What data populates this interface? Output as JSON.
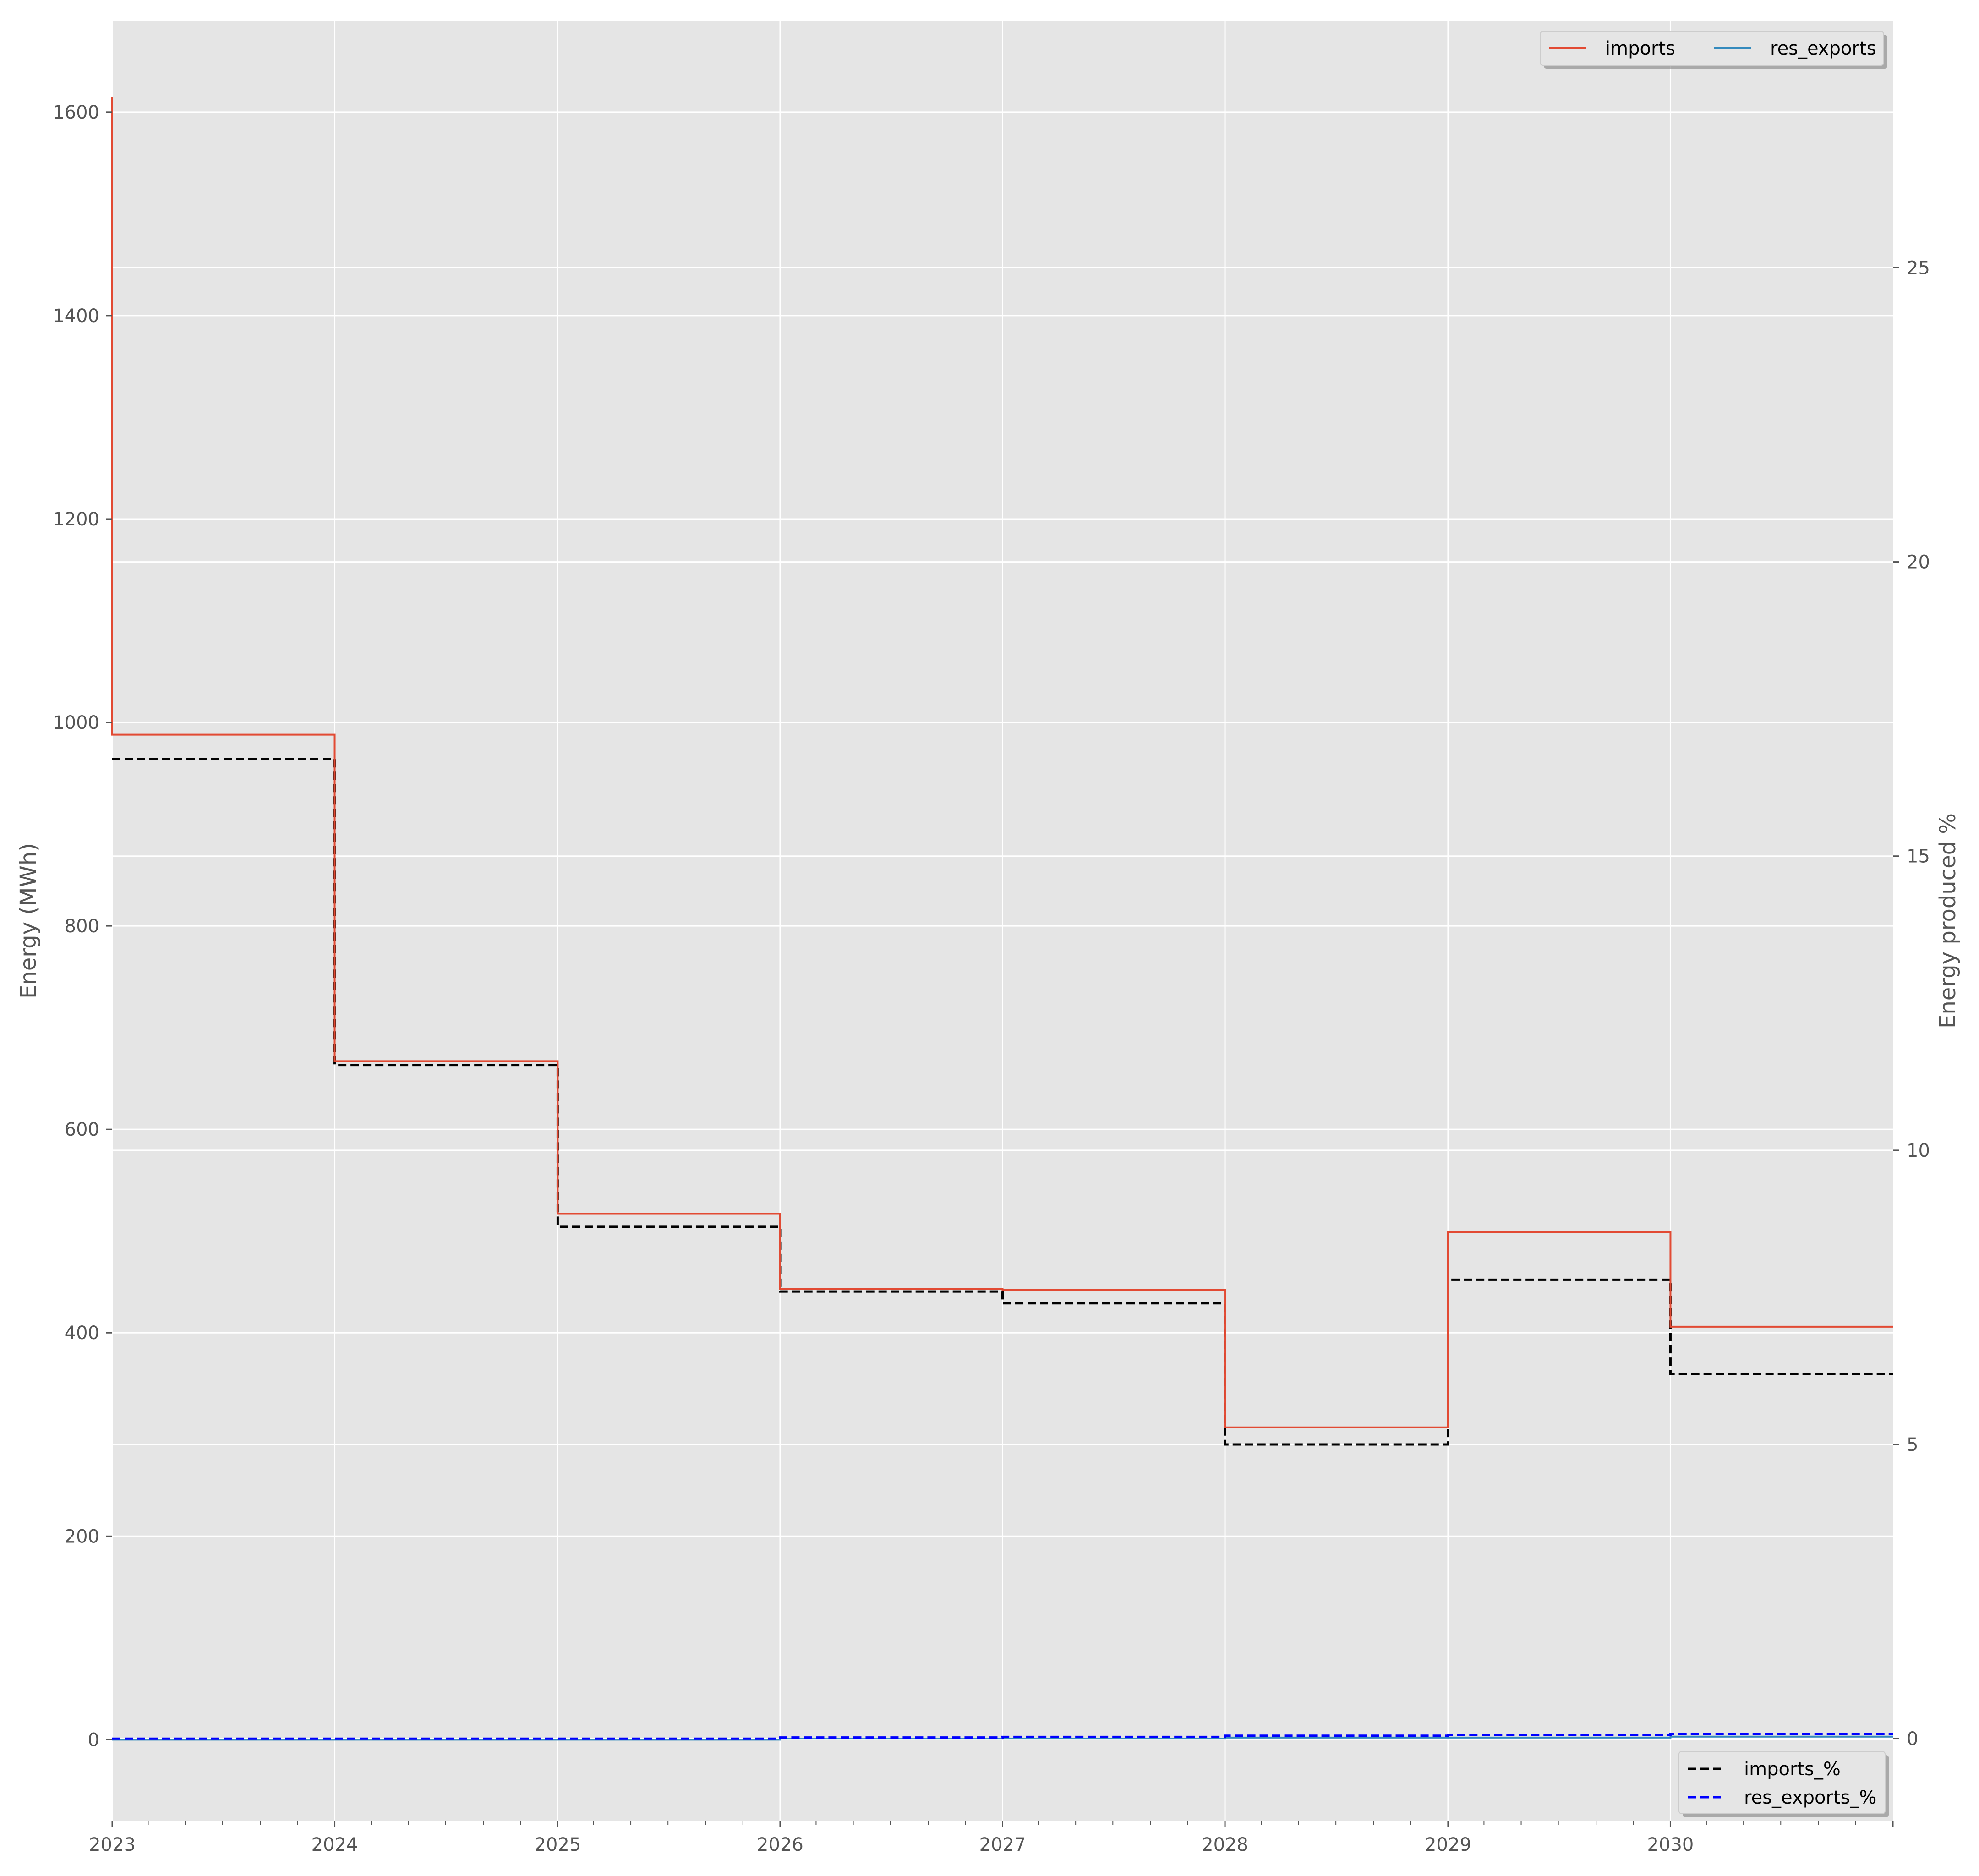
{
  "chart_data": {
    "type": "line",
    "style": "step",
    "x_ticks": [
      "2023",
      "2024",
      "2025",
      "2026",
      "2027",
      "2028",
      "2029",
      "2030"
    ],
    "xlim": [
      "2023-01-01",
      "2031-01-01"
    ],
    "left_axis": {
      "ylabel": "Energy (MWh)",
      "ylim": [
        -80,
        1690
      ],
      "ticks": [
        0,
        200,
        400,
        600,
        800,
        1000,
        1200,
        1400,
        1600
      ],
      "tick_labels": [
        "0",
        "200",
        "400",
        "600",
        "800",
        "1000",
        "1200",
        "1400",
        "1600"
      ]
    },
    "right_axis": {
      "ylabel": "Energy produced %",
      "ylim": [
        -1.4,
        29.2
      ],
      "ticks": [
        0,
        5,
        10,
        15,
        20,
        25
      ],
      "tick_labels": [
        "0",
        "5",
        "10",
        "15",
        "20",
        "25"
      ]
    },
    "series": [
      {
        "name": "imports",
        "axis": "left",
        "color": "#E24A33",
        "linestyle": "solid",
        "initial_spike": 1615,
        "x": [
          "2023",
          "2024",
          "2025",
          "2026",
          "2027",
          "2028",
          "2029",
          "2030"
        ],
        "values": [
          988,
          667,
          517,
          443,
          442,
          307,
          499,
          406
        ]
      },
      {
        "name": "res_exports",
        "axis": "left",
        "color": "#348ABD",
        "linestyle": "solid",
        "x": [
          "2023",
          "2024",
          "2025",
          "2026",
          "2027",
          "2028",
          "2029",
          "2030"
        ],
        "values": [
          0,
          0,
          0,
          1,
          1,
          2,
          2,
          3
        ]
      },
      {
        "name": "imports_%",
        "axis": "right",
        "color": "#000000",
        "linestyle": "dashed",
        "x": [
          "2023",
          "2024",
          "2025",
          "2026",
          "2027",
          "2028",
          "2029",
          "2030"
        ],
        "values": [
          16.65,
          11.45,
          8.7,
          7.6,
          7.4,
          5.0,
          7.8,
          6.2
        ]
      },
      {
        "name": "res_exports_%",
        "axis": "right",
        "color": "#0000FF",
        "linestyle": "dashed",
        "x": [
          "2023",
          "2024",
          "2025",
          "2026",
          "2027",
          "2028",
          "2029",
          "2030"
        ],
        "values": [
          0.0,
          0.0,
          0.0,
          0.02,
          0.03,
          0.05,
          0.06,
          0.08
        ]
      }
    ],
    "legends": [
      {
        "placement": "top-right",
        "entries": [
          "imports",
          "res_exports"
        ]
      },
      {
        "placement": "bottom-right",
        "entries": [
          "imports_%",
          "res_exports_%"
        ]
      }
    ],
    "grid": true,
    "background": "#E5E5E5"
  }
}
